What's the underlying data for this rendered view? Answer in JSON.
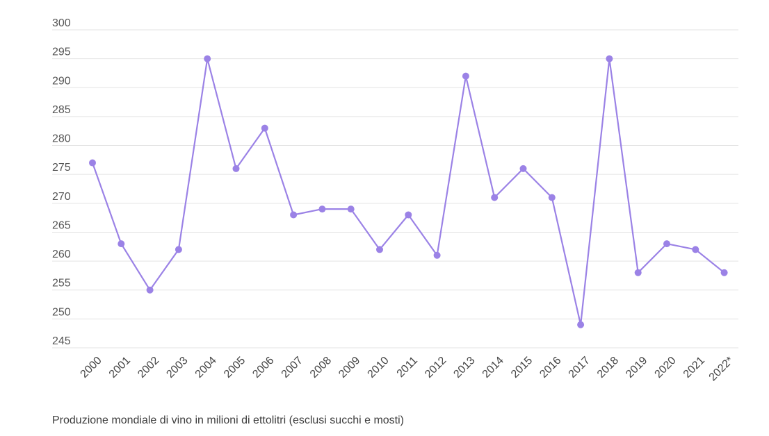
{
  "chart_data": {
    "type": "line",
    "categories": [
      "2000",
      "2001",
      "2002",
      "2003",
      "2004",
      "2005",
      "2006",
      "2007",
      "2008",
      "2009",
      "2010",
      "2011",
      "2012",
      "2013",
      "2014",
      "2015",
      "2016",
      "2017",
      "2018",
      "2019",
      "2020",
      "2021",
      "2022*"
    ],
    "series": [
      {
        "values": [
          277,
          263,
          255,
          262,
          295,
          276,
          283,
          268,
          269,
          269,
          262,
          268,
          261,
          292,
          271,
          276,
          271,
          249,
          295,
          258,
          263,
          262,
          258
        ]
      }
    ],
    "ylim": [
      245,
      300
    ],
    "yticks": [
      245,
      250,
      255,
      260,
      265,
      270,
      275,
      280,
      285,
      290,
      295,
      300
    ],
    "grid": true,
    "title": "",
    "xlabel": "",
    "ylabel": "",
    "colors": {
      "line": "#9b82e6",
      "marker": "#9b82e6",
      "grid": "#e3e3e3"
    }
  },
  "caption": "Produzione mondiale di vino in milioni di ettolitri (esclusi succhi e mosti)"
}
